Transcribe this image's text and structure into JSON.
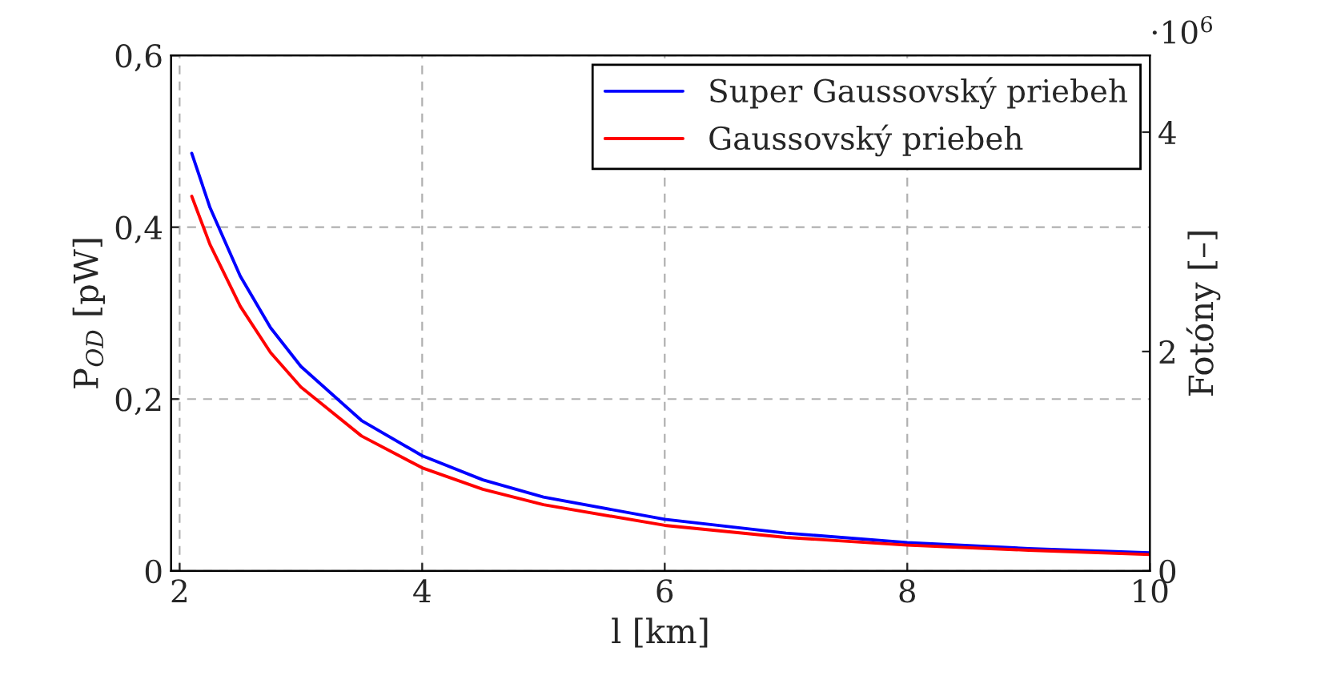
{
  "chart_data": {
    "type": "line",
    "xlabel": "l [km]",
    "ylabel": "P$_{OD}$ [pW]",
    "y2label": "Fotóny [–]",
    "x": [
      2.1,
      2.25,
      2.5,
      2.75,
      3,
      3.5,
      4,
      4.5,
      5,
      6,
      7,
      8,
      9,
      10
    ],
    "series": [
      {
        "name": "Super Gaussovský priebeh",
        "color": "#0000ff",
        "values": [
          0.486,
          0.423,
          0.343,
          0.283,
          0.238,
          0.175,
          0.134,
          0.106,
          0.086,
          0.06,
          0.044,
          0.033,
          0.026,
          0.021
        ]
      },
      {
        "name": "Gaussovský priebeh",
        "color": "#ff0000",
        "values": [
          0.436,
          0.38,
          0.308,
          0.254,
          0.214,
          0.157,
          0.12,
          0.095,
          0.077,
          0.053,
          0.039,
          0.03,
          0.024,
          0.019
        ]
      }
    ],
    "xlim": [
      1.93,
      10
    ],
    "xticks": [
      2,
      4,
      6,
      8,
      10
    ],
    "ylim": [
      0,
      0.6
    ],
    "yticks": [
      {
        "value": 0,
        "label": "0"
      },
      {
        "value": 0.2,
        "label": "0,2"
      },
      {
        "value": 0.4,
        "label": "0,4"
      },
      {
        "value": 0.6,
        "label": "0,6"
      }
    ],
    "y2lim": [
      0,
      4.7
    ],
    "y2ticks": [
      0,
      2,
      4
    ],
    "annotations": [
      "·10$^{6}$"
    ],
    "grid": true,
    "legend": "top right",
    "line_style": "solid",
    "marker": "none"
  }
}
